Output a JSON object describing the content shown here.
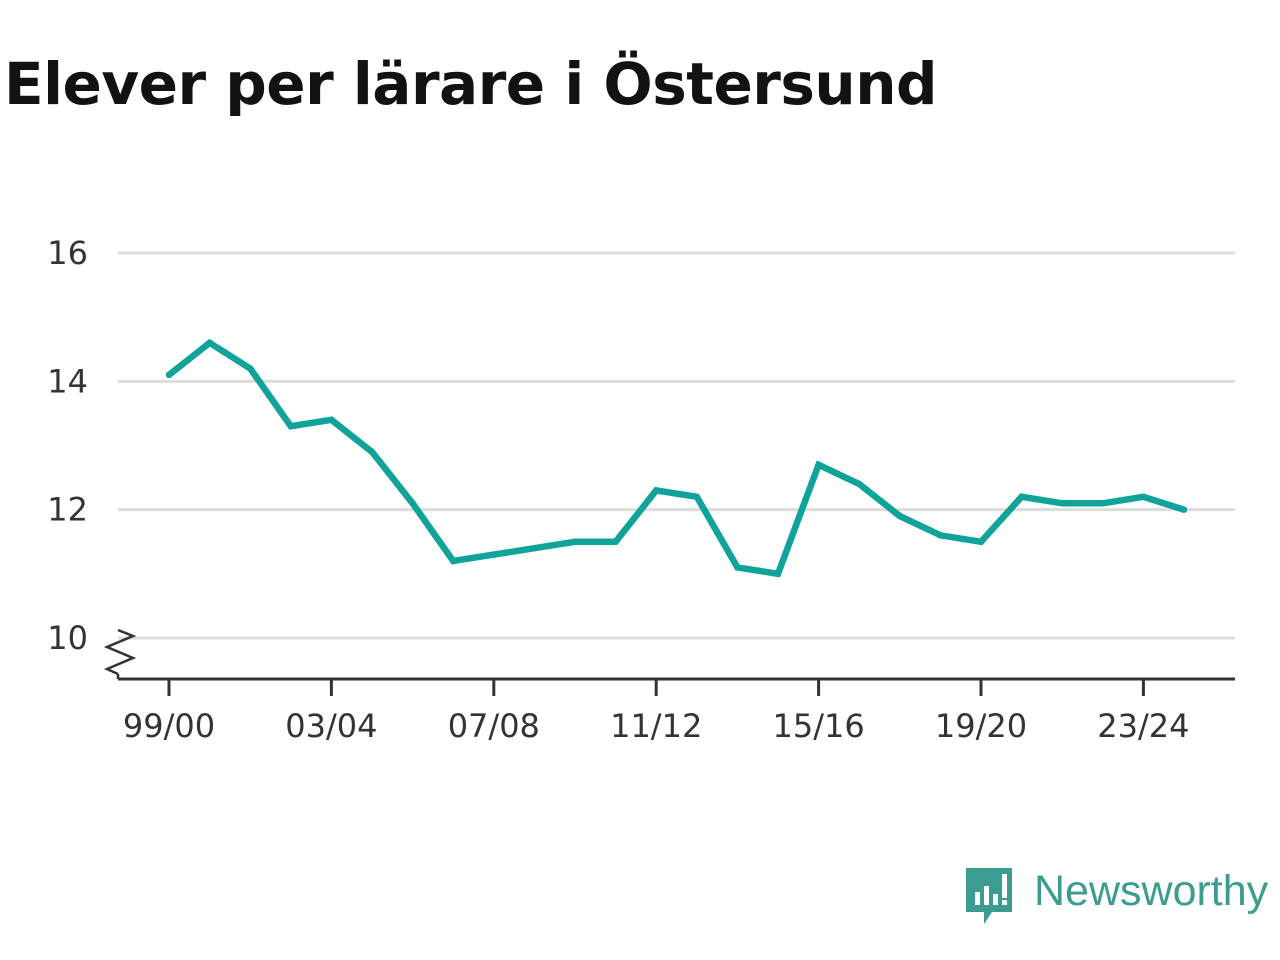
{
  "title": "Elever per lärare i Östersund",
  "colors": {
    "line": "#0fa39a",
    "grid": "#dcdcdc",
    "axis": "#333333",
    "title": "#121212",
    "brand": "#3c9c8f"
  },
  "brand": {
    "name": "Newsworthy",
    "icon": "newsworthy-chart-bubble-icon"
  },
  "chart_data": {
    "type": "line",
    "title": "Elever per lärare i Östersund",
    "xlabel": "",
    "ylabel": "",
    "ylim": [
      10,
      16
    ],
    "y_axis_break": true,
    "yticks": [
      10,
      12,
      14,
      16
    ],
    "grid": true,
    "x_tick_labels": [
      "99/00",
      "03/04",
      "07/08",
      "11/12",
      "15/16",
      "19/20",
      "23/24"
    ],
    "x": [
      "99/00",
      "00/01",
      "01/02",
      "02/03",
      "03/04",
      "04/05",
      "05/06",
      "06/07",
      "07/08",
      "08/09",
      "09/10",
      "10/11",
      "11/12",
      "12/13",
      "13/14",
      "14/15",
      "15/16",
      "16/17",
      "17/18",
      "18/19",
      "19/20",
      "20/21",
      "21/22",
      "22/23",
      "23/24",
      "24/25"
    ],
    "series": [
      {
        "values": [
          14.1,
          14.6,
          14.2,
          13.3,
          13.4,
          12.9,
          12.1,
          11.2,
          11.3,
          11.4,
          11.5,
          11.5,
          12.3,
          12.2,
          11.1,
          11.0,
          12.7,
          12.4,
          11.9,
          11.6,
          11.5,
          12.2,
          12.1,
          12.1,
          12.2,
          12.0
        ]
      }
    ]
  }
}
